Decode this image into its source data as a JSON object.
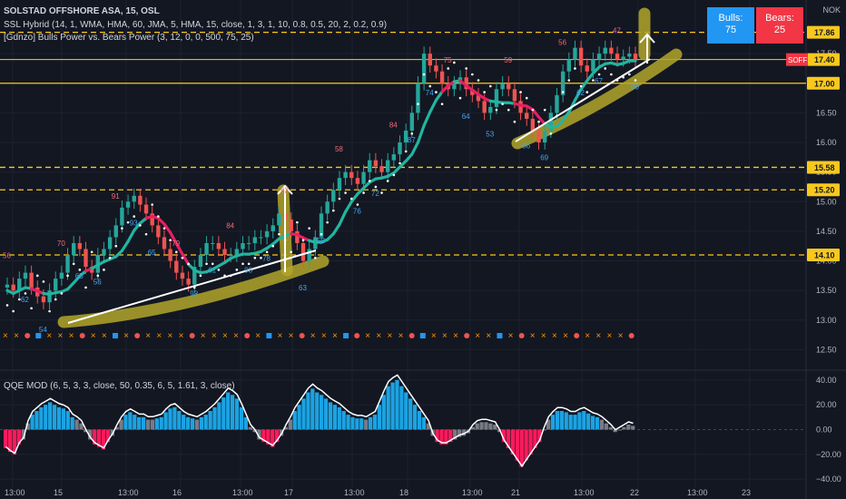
{
  "header": {
    "symbol_line": "SOLSTAD OFFSHORE ASA, 15, OSL",
    "indicator1": "SSL Hybrid (14, 1, WMA, HMA, 60, JMA, 5, HMA, 15, close, 1, 3, 1, 10, 0.8, 0.5, 20, 2, 0.2, 0.9)",
    "indicator2": "[Gdnzo] Bulls Power vs. Bears Power (3, 12, 0, 0, 500, 75, 25)",
    "oscillator": "QQE MOD (6, 5, 3, 3, close, 50, 0.35, 6, 5, 1.61, 3, close)"
  },
  "badges": {
    "bulls_label": "Bulls:",
    "bulls_value": "75",
    "bears_label": "Bears:",
    "bears_value": "25"
  },
  "currency": "NOK",
  "colors": {
    "background": "#131722",
    "up": "#26a69a",
    "down": "#ef5350",
    "ssl_green": "#21b5a0",
    "ssl_red": "#e91e63",
    "level_line": "#f9c81d",
    "highlight": "#b3a62a",
    "qqe_up": "#1ba3e3",
    "qqe_down": "#ff1a5c",
    "qqe_neutral": "#787b86",
    "bulls_badge": "#2196f3",
    "bears_badge": "#f23645"
  },
  "chart_data": [
    {
      "type": "line",
      "title": "SOLSTAD OFFSHORE ASA, 15, OSL",
      "x_ticks": [
        "13:00",
        "15",
        "13:00",
        "16",
        "13:00",
        "17",
        "13:00",
        "18",
        "13:00",
        "21",
        "13:00",
        "22",
        "13:00",
        "23"
      ],
      "y_ticks": [
        12.5,
        13.0,
        13.5,
        14.0,
        14.5,
        15.0,
        15.5,
        16.0,
        16.5,
        17.0,
        17.5
      ],
      "ylim": [
        12.2,
        18.1
      ],
      "price_labels": [
        {
          "label": "17.86",
          "value": 17.86
        },
        {
          "label": "17.40",
          "value": 17.4
        },
        {
          "label": "17.00",
          "value": 17.0
        },
        {
          "label": "15.58",
          "value": 15.58
        },
        {
          "label": "15.20",
          "value": 15.2
        },
        {
          "label": "14.10",
          "value": 14.1
        }
      ],
      "horizontal_levels": [
        17.86,
        17.0,
        15.58,
        15.2,
        14.1
      ],
      "last_price": {
        "symbol": "SOFF",
        "value": 17.4
      },
      "close_series": [
        13.6,
        13.5,
        13.7,
        13.8,
        13.55,
        13.4,
        13.3,
        13.5,
        13.7,
        13.8,
        14.1,
        14.3,
        14.2,
        13.9,
        13.8,
        14.1,
        14.2,
        14.4,
        14.6,
        14.9,
        15.0,
        15.1,
        14.95,
        14.8,
        14.6,
        14.4,
        14.2,
        14.0,
        13.8,
        13.7,
        13.6,
        13.9,
        14.1,
        14.3,
        14.3,
        14.2,
        14.1,
        14.1,
        14.2,
        14.3,
        14.3,
        14.4,
        14.4,
        14.5,
        14.6,
        14.8,
        14.7,
        14.5,
        14.3,
        14.0,
        14.2,
        14.4,
        14.8,
        15.0,
        15.2,
        15.4,
        15.5,
        15.4,
        15.3,
        15.5,
        15.7,
        15.6,
        15.5,
        15.7,
        15.8,
        16.0,
        16.2,
        16.5,
        17.0,
        17.5,
        17.3,
        17.2,
        17.0,
        16.9,
        17.0,
        17.1,
        16.9,
        16.8,
        16.7,
        16.5,
        16.6,
        16.9,
        17.0,
        16.9,
        16.7,
        16.5,
        16.4,
        16.2,
        16.0,
        16.2,
        16.5,
        16.8,
        17.2,
        17.4,
        17.6,
        17.3,
        17.2,
        17.4,
        17.5,
        17.6,
        17.5,
        17.4,
        17.45,
        17.5,
        17.4
      ],
      "signal_numbers": [
        "56",
        "62",
        "54",
        "70",
        "65",
        "56",
        "91",
        "93",
        "65",
        "79",
        "98",
        "61",
        "84",
        "98",
        "78",
        "62",
        "63",
        "52",
        "58",
        "76",
        "72",
        "84",
        "87",
        "74",
        "75",
        "64",
        "53",
        "59",
        "86",
        "69",
        "56",
        "62",
        "67",
        "47",
        "90"
      ]
    },
    {
      "type": "bar",
      "title": "QQE MOD (6, 5, 3, 3, close, 50, 0.35, 6, 5, 1.61, 3, close)",
      "y_ticks": [
        40.0,
        20.0,
        0.0,
        -20.0,
        -40.0
      ],
      "ylim": [
        -45,
        45
      ],
      "values": [
        -15,
        -18,
        -20,
        -12,
        -8,
        5,
        12,
        15,
        18,
        20,
        22,
        20,
        18,
        17,
        15,
        10,
        8,
        5,
        -2,
        -8,
        -12,
        -14,
        -16,
        -10,
        -5,
        2,
        8,
        12,
        14,
        12,
        10,
        10,
        8,
        8,
        9,
        10,
        14,
        17,
        18,
        15,
        12,
        10,
        9,
        8,
        10,
        12,
        15,
        18,
        22,
        26,
        30,
        28,
        25,
        18,
        10,
        2,
        -2,
        -8,
        -10,
        -12,
        -14,
        -10,
        -5,
        2,
        8,
        15,
        20,
        25,
        30,
        33,
        30,
        28,
        25,
        22,
        20,
        18,
        15,
        12,
        10,
        9,
        9,
        8,
        10,
        12,
        20,
        28,
        35,
        38,
        40,
        35,
        30,
        25,
        20,
        15,
        10,
        5,
        -5,
        -10,
        -12,
        -12,
        -10,
        -8,
        -6,
        -5,
        -3,
        2,
        5,
        6,
        6,
        5,
        4,
        -2,
        -10,
        -15,
        -20,
        -25,
        -30,
        -25,
        -20,
        -15,
        -10,
        0,
        8,
        12,
        15,
        15,
        14,
        12,
        12,
        14,
        15,
        13,
        11,
        10,
        8,
        5,
        2,
        -2,
        0,
        2,
        4,
        3
      ]
    }
  ]
}
